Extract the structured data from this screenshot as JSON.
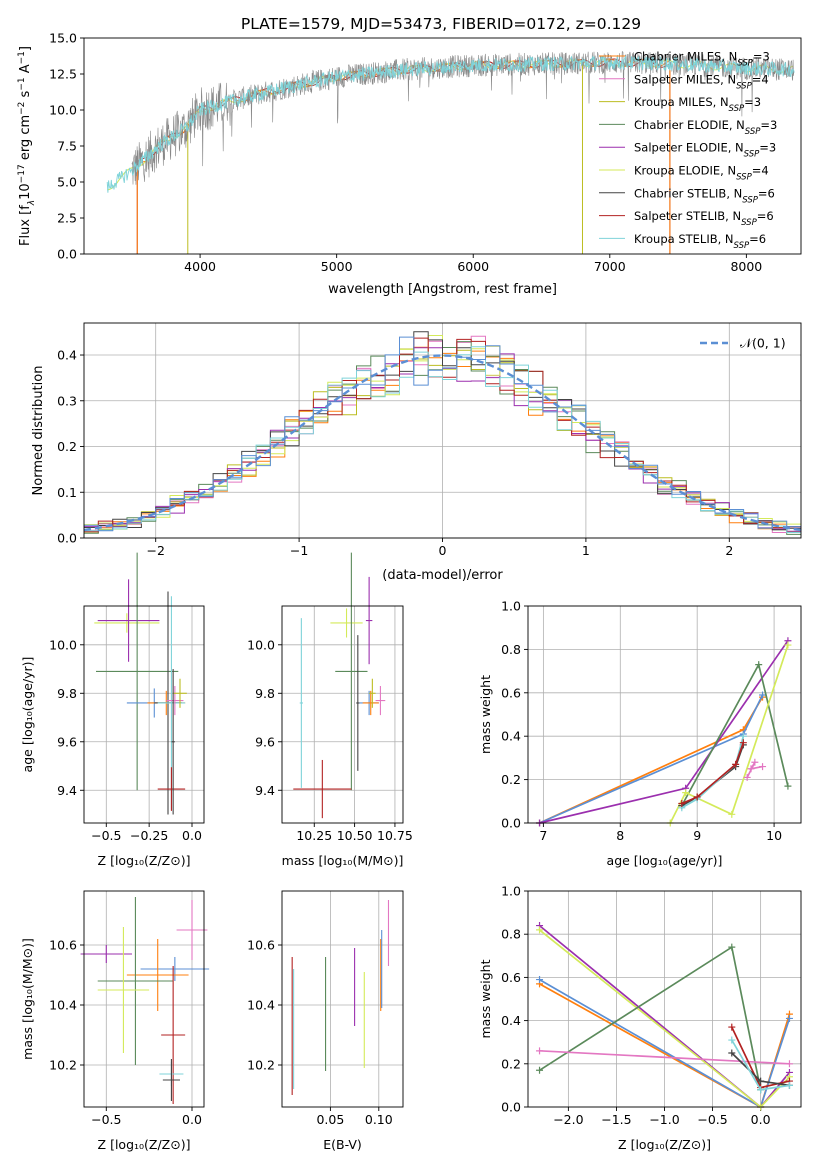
{
  "figure_title": "PLATE=1579, MJD=53473, FIBERID=0172, z=0.129",
  "colors": {
    "chabrier_miles": "#ff7f0e",
    "salpeter_miles": "#e377c2",
    "kroupa_miles": "#bcbd22",
    "chabrier_elodie": "#5b8a5b",
    "salpeter_elodie": "#9b2fae",
    "kroupa_elodie": "#d4ea5a",
    "chabrier_stelib": "#444444",
    "salpeter_stelib": "#b22222",
    "kroupa_stelib": "#7fd3d9",
    "normal_fit": "#5b8fd4",
    "spectrum_grey": "#888888"
  },
  "chart_data": [
    {
      "id": "spectrum",
      "type": "line",
      "title": "PLATE=1579, MJD=53473, FIBERID=0172, z=0.129",
      "xlabel": "wavelength [Angstrom, rest frame]",
      "ylabel_parts": [
        "Flux [f",
        "λ",
        "10",
        "−17",
        " erg cm",
        "−2",
        " s",
        "−1",
        " A",
        "−1",
        "]"
      ],
      "xlim": [
        3150,
        8400
      ],
      "ylim": [
        0,
        15
      ],
      "xticks": [
        "4000",
        "5000",
        "6000",
        "7000",
        "8000"
      ],
      "yticks": [
        "0.0",
        "2.5",
        "5.0",
        "7.5",
        "10.0",
        "12.5",
        "15.0"
      ],
      "grid": false,
      "legend_position": "right",
      "legend": [
        {
          "name": "Chabrier MILES, N",
          "sub": "SSP",
          "suffix": "=3"
        },
        {
          "name": "Salpeter MILES, N",
          "sub": "SSP",
          "suffix": "=4"
        },
        {
          "name": "Kroupa MILES, N",
          "sub": "SSP",
          "suffix": "=3"
        },
        {
          "name": "Chabrier ELODIE, N",
          "sub": "SSP",
          "suffix": "=3"
        },
        {
          "name": "Salpeter ELODIE, N",
          "sub": "SSP",
          "suffix": "=3"
        },
        {
          "name": "Kroupa ELODIE, N",
          "sub": "SSP",
          "suffix": "=4"
        },
        {
          "name": "Chabrier STELIB, N",
          "sub": "SSP",
          "suffix": "=6"
        },
        {
          "name": "Salpeter STELIB, N",
          "sub": "SSP",
          "suffix": "=6"
        },
        {
          "name": "Kroupa STELIB, N",
          "sub": "SSP",
          "suffix": "=6"
        }
      ],
      "continuum_anchors": [
        [
          3320,
          4.6
        ],
        [
          3500,
          5.8
        ],
        [
          3700,
          7.5
        ],
        [
          3900,
          8.8
        ],
        [
          4000,
          10.0
        ],
        [
          4300,
          10.8
        ],
        [
          4600,
          11.5
        ],
        [
          5000,
          12.3
        ],
        [
          5500,
          12.8
        ],
        [
          6000,
          13.1
        ],
        [
          6500,
          13.2
        ],
        [
          7000,
          13.3
        ],
        [
          7500,
          13.2
        ],
        [
          8000,
          12.9
        ],
        [
          8350,
          12.8
        ]
      ],
      "model_edges": [
        {
          "series": "salpeter_stelib",
          "x_start": 3540,
          "x_end": 7440
        },
        {
          "series": "kroupa_miles",
          "x_start": 3910,
          "x_end": 6800
        },
        {
          "series": "chabrier_miles",
          "x_start": 3540,
          "x_end": 7440
        }
      ]
    },
    {
      "id": "residuals",
      "type": "line",
      "xlabel": "(data-model)/error",
      "ylabel": "Normed distribution",
      "xlim": [
        -2.5,
        2.5
      ],
      "ylim": [
        0,
        0.47
      ],
      "xticks": [
        -2,
        -1,
        0,
        1,
        2
      ],
      "xtick_labels": [
        "−2",
        "−1",
        "0",
        "1",
        "2"
      ],
      "yticks": [
        0.0,
        0.1,
        0.2,
        0.3,
        0.4
      ],
      "ytick_labels": [
        "0.0",
        "0.1",
        "0.2",
        "0.3",
        "0.4"
      ],
      "grid": true,
      "legend_position": "top-right",
      "legend_label": "𝒩(0, 1)",
      "bin_width": 0.1
    },
    {
      "id": "age_vs_z",
      "type": "scatter",
      "xlabel": "Z [log₁₀(Z/Z⊙)]",
      "ylabel": "age  [log₁₀(age/yr)]",
      "xlim": [
        -0.63,
        0.07
      ],
      "ylim": [
        9.265,
        10.16
      ],
      "xticks": [
        -0.5,
        -0.25,
        0.0
      ],
      "xtick_labels": [
        "−0.5",
        "−0.25",
        "0.0"
      ],
      "yticks": [
        9.4,
        9.6,
        9.8,
        10.0
      ],
      "ytick_labels": [
        "9.4",
        "9.6",
        "9.8",
        "10.0"
      ],
      "grid": true,
      "points": [
        {
          "s": "kroupa_elodie",
          "x": -0.38,
          "y": 10.09,
          "xe": 0.19,
          "ye": 0.04
        },
        {
          "s": "salpeter_elodie",
          "x": -0.37,
          "y": 10.1,
          "xe": 0.18,
          "ye": 0.17
        },
        {
          "s": "chabrier_elodie",
          "x": -0.32,
          "y": 9.89,
          "xe": 0.24,
          "ye": 0.49
        },
        {
          "s": "normal_fit",
          "x": -0.22,
          "y": 9.76,
          "xe": 0.16,
          "ye": 0.06
        },
        {
          "s": "chabrier_miles",
          "x": -0.15,
          "y": 9.76,
          "xe": 0.11,
          "ye": 0.05
        },
        {
          "s": "chabrier_stelib",
          "x": -0.14,
          "y": 9.76,
          "xe": 0.08,
          "ye": 0.46
        },
        {
          "s": "kroupa_stelib",
          "x": -0.12,
          "y": 9.76,
          "xe": 0.08,
          "ye": 0.44
        },
        {
          "s": "salpeter_stelib",
          "x": -0.12,
          "y": 9.405,
          "xe": 0.08,
          "ye": 0.09
        },
        {
          "s": "salpeter_miles",
          "x": -0.1,
          "y": 9.77,
          "xe": 0.05,
          "ye": 0.06
        },
        {
          "s": "kroupa_miles",
          "x": -0.07,
          "y": 9.8,
          "xe": 0.04,
          "ye": 0.06
        },
        {
          "s": "chabrier_stelib",
          "x": -0.11,
          "y": 9.6,
          "xe": 0.01,
          "ye": 0.3
        }
      ]
    },
    {
      "id": "age_vs_mass",
      "type": "scatter",
      "xlabel": "mass [log₁₀(M/M⊙)]",
      "xlim": [
        10.05,
        10.8
      ],
      "ylim": [
        9.265,
        10.16
      ],
      "xticks": [
        10.25,
        10.5,
        10.75
      ],
      "xtick_labels": [
        "10.25",
        "10.50",
        "10.75"
      ],
      "yticks": [
        9.4,
        9.6,
        9.8,
        10.0
      ],
      "ytick_labels": [
        "9.4",
        "9.6",
        "9.8",
        "10.0"
      ],
      "grid": true,
      "points": [
        {
          "s": "kroupa_elodie",
          "x": 10.45,
          "y": 10.09,
          "xe": 0.1,
          "ye": 0.06
        },
        {
          "s": "salpeter_elodie",
          "x": 10.59,
          "y": 10.1,
          "xe": 0.02,
          "ye": 0.18
        },
        {
          "s": "chabrier_elodie",
          "x": 10.48,
          "y": 9.89,
          "xe": 0.1,
          "ye": 0.49
        },
        {
          "s": "kroupa_stelib",
          "x": 10.17,
          "y": 9.76,
          "xe": 0.01,
          "ye": 0.35
        },
        {
          "s": "salpeter_stelib",
          "x": 10.3,
          "y": 9.405,
          "xe": 0.18,
          "ye": 0.12
        },
        {
          "s": "chabrier_stelib",
          "x": 10.52,
          "y": 9.76,
          "xe": 0.01,
          "ye": 0.28
        },
        {
          "s": "normal_fit",
          "x": 10.59,
          "y": 9.76,
          "xe": 0.06,
          "ye": 0.05
        },
        {
          "s": "chabrier_miles",
          "x": 10.6,
          "y": 9.76,
          "xe": 0.05,
          "ye": 0.05
        },
        {
          "s": "kroupa_miles",
          "x": 10.61,
          "y": 9.8,
          "xe": 0.02,
          "ye": 0.06
        },
        {
          "s": "salpeter_miles",
          "x": 10.66,
          "y": 9.77,
          "xe": 0.03,
          "ye": 0.06
        }
      ]
    },
    {
      "id": "weight_vs_age",
      "type": "line",
      "xlabel": "age  [log₁₀(age/yr)]",
      "ylabel": "mass weight",
      "xlim": [
        6.8,
        10.35
      ],
      "ylim": [
        0,
        1
      ],
      "xticks": [
        7,
        8,
        9,
        10
      ],
      "xtick_labels": [
        "7",
        "8",
        "9",
        "10"
      ],
      "yticks": [
        0.0,
        0.2,
        0.4,
        0.6,
        0.8,
        1.0
      ],
      "ytick_labels": [
        "0.0",
        "0.2",
        "0.4",
        "0.6",
        "0.8",
        "1.0"
      ],
      "grid": true,
      "series": [
        {
          "s": "chabrier_miles",
          "x": [
            6.95,
            9.6,
            9.85
          ],
          "y": [
            0.0,
            0.43,
            0.58
          ]
        },
        {
          "s": "normal_fit",
          "x": [
            6.95,
            9.6,
            9.85
          ],
          "y": [
            0.0,
            0.41,
            0.59
          ]
        },
        {
          "s": "salpeter_elodie",
          "x": [
            6.95,
            8.85,
            10.18
          ],
          "y": [
            0.0,
            0.16,
            0.84
          ]
        },
        {
          "s": "chabrier_elodie",
          "x": [
            8.8,
            9.8,
            10.18
          ],
          "y": [
            0.08,
            0.73,
            0.17
          ]
        },
        {
          "s": "kroupa_elodie",
          "x": [
            8.65,
            8.85,
            9.45,
            10.18
          ],
          "y": [
            0.0,
            0.14,
            0.04,
            0.82
          ]
        },
        {
          "s": "chabrier_stelib",
          "x": [
            8.8,
            9.0,
            9.5,
            9.6
          ],
          "y": [
            0.08,
            0.12,
            0.26,
            0.36
          ]
        },
        {
          "s": "kroupa_stelib",
          "x": [
            8.8,
            9.0,
            9.5,
            9.6
          ],
          "y": [
            0.07,
            0.11,
            0.27,
            0.4
          ]
        },
        {
          "s": "salpeter_stelib",
          "x": [
            8.8,
            9.0,
            9.5,
            9.6
          ],
          "y": [
            0.09,
            0.12,
            0.27,
            0.37
          ]
        },
        {
          "s": "salpeter_miles",
          "x": [
            9.65,
            9.75,
            9.7,
            9.85
          ],
          "y": [
            0.21,
            0.28,
            0.25,
            0.26
          ]
        }
      ]
    },
    {
      "id": "mass_vs_z",
      "type": "scatter",
      "xlabel": "Z [log₁₀(Z/Z⊙)]",
      "ylabel": "mass [log₁₀(M/M⊙)]",
      "xlim": [
        -0.63,
        0.07
      ],
      "ylim": [
        10.06,
        10.78
      ],
      "xticks": [
        -0.5,
        0.0
      ],
      "xtick_labels": [
        "−0.5",
        "0.0"
      ],
      "yticks": [
        10.2,
        10.4,
        10.6
      ],
      "ytick_labels": [
        "10.2",
        "10.4",
        "10.6"
      ],
      "grid": true,
      "points": [
        {
          "s": "salpeter_miles",
          "x": 0.0,
          "y": 10.65,
          "xe": 0.09,
          "ye": 0.1
        },
        {
          "s": "salpeter_elodie",
          "x": -0.5,
          "y": 10.57,
          "xe": 0.15,
          "ye": 0.03
        },
        {
          "s": "normal_fit",
          "x": -0.1,
          "y": 10.52,
          "xe": 0.2,
          "ye": 0.04
        },
        {
          "s": "chabrier_miles",
          "x": -0.2,
          "y": 10.5,
          "xe": 0.18,
          "ye": 0.12
        },
        {
          "s": "chabrier_elodie",
          "x": -0.33,
          "y": 10.48,
          "xe": 0.22,
          "ye": 0.28
        },
        {
          "s": "kroupa_elodie",
          "x": -0.4,
          "y": 10.45,
          "xe": 0.15,
          "ye": 0.21
        },
        {
          "s": "salpeter_stelib",
          "x": -0.11,
          "y": 10.3,
          "xe": 0.07,
          "ye": 0.23
        },
        {
          "s": "kroupa_stelib",
          "x": -0.12,
          "y": 10.17,
          "xe": 0.07,
          "ye": 0.04
        },
        {
          "s": "chabrier_stelib",
          "x": -0.12,
          "y": 10.15,
          "xe": 0.05,
          "ye": 0.07
        }
      ]
    },
    {
      "id": "mass_vs_ebv",
      "type": "scatter",
      "xlabel": "E(B-V)",
      "xlim": [
        0.0,
        0.125
      ],
      "ylim": [
        10.06,
        10.78
      ],
      "xticks": [
        0.05,
        0.1
      ],
      "xtick_labels": [
        "0.05",
        "0.10"
      ],
      "yticks": [
        10.2,
        10.4,
        10.6
      ],
      "ytick_labels": [
        "10.2",
        "10.4",
        "10.6"
      ],
      "grid": true,
      "points": [
        {
          "s": "salpeter_stelib",
          "x": 0.0105,
          "y": 10.33,
          "xe": 0.0,
          "ye": 0.23
        },
        {
          "s": "kroupa_stelib",
          "x": 0.012,
          "y": 10.32,
          "xe": 0.0,
          "ye": 0.2
        },
        {
          "s": "chabrier_elodie",
          "x": 0.045,
          "y": 10.37,
          "xe": 0.0,
          "ye": 0.19
        },
        {
          "s": "salpeter_elodie",
          "x": 0.075,
          "y": 10.46,
          "xe": 0.0,
          "ye": 0.13
        },
        {
          "s": "kroupa_elodie",
          "x": 0.085,
          "y": 10.35,
          "xe": 0.0,
          "ye": 0.16
        },
        {
          "s": "chabrier_miles",
          "x": 0.102,
          "y": 10.5,
          "xe": 0.0,
          "ye": 0.12
        },
        {
          "s": "normal_fit",
          "x": 0.103,
          "y": 10.52,
          "xe": 0.0,
          "ye": 0.13
        },
        {
          "s": "salpeter_miles",
          "x": 0.11,
          "y": 10.64,
          "xe": 0.0,
          "ye": 0.11
        }
      ]
    },
    {
      "id": "weight_vs_z",
      "type": "line",
      "xlabel": "Z [log₁₀(Z/Z⊙)]",
      "ylabel": "mass weight",
      "xlim": [
        -2.42,
        0.42
      ],
      "ylim": [
        0,
        1
      ],
      "xticks": [
        -2.0,
        -1.5,
        -1.0,
        -0.5,
        0.0
      ],
      "xtick_labels": [
        "−2.0",
        "−1.5",
        "−1.0",
        "−0.5",
        "0.0"
      ],
      "yticks": [
        0.0,
        0.2,
        0.4,
        0.6,
        0.8,
        1.0
      ],
      "ytick_labels": [
        "0.0",
        "0.2",
        "0.4",
        "0.6",
        "0.8",
        "1.0"
      ],
      "grid": true,
      "series": [
        {
          "s": "chabrier_miles",
          "x": [
            -2.3,
            0.0,
            0.3
          ],
          "y": [
            0.57,
            0.0,
            0.43
          ]
        },
        {
          "s": "normal_fit",
          "x": [
            -2.3,
            0.0,
            0.3
          ],
          "y": [
            0.59,
            0.0,
            0.41
          ]
        },
        {
          "s": "salpeter_elodie",
          "x": [
            -2.3,
            0.0,
            0.3
          ],
          "y": [
            0.84,
            0.0,
            0.16
          ]
        },
        {
          "s": "kroupa_elodie",
          "x": [
            -2.3,
            0.0,
            0.3
          ],
          "y": [
            0.82,
            0.0,
            0.14
          ]
        },
        {
          "s": "chabrier_elodie",
          "x": [
            -2.3,
            -0.3,
            0.0
          ],
          "y": [
            0.17,
            0.74,
            0.08
          ]
        },
        {
          "s": "salpeter_miles",
          "x": [
            -2.3,
            0.3
          ],
          "y": [
            0.26,
            0.2
          ]
        },
        {
          "s": "salpeter_stelib",
          "x": [
            -0.3,
            0.0,
            0.3
          ],
          "y": [
            0.37,
            0.09,
            0.12
          ]
        },
        {
          "s": "chabrier_stelib",
          "x": [
            -0.3,
            0.0,
            0.3
          ],
          "y": [
            0.25,
            0.12,
            0.1
          ]
        },
        {
          "s": "kroupa_stelib",
          "x": [
            -0.3,
            0.0,
            0.3
          ],
          "y": [
            0.31,
            0.08,
            0.1
          ]
        }
      ]
    }
  ]
}
